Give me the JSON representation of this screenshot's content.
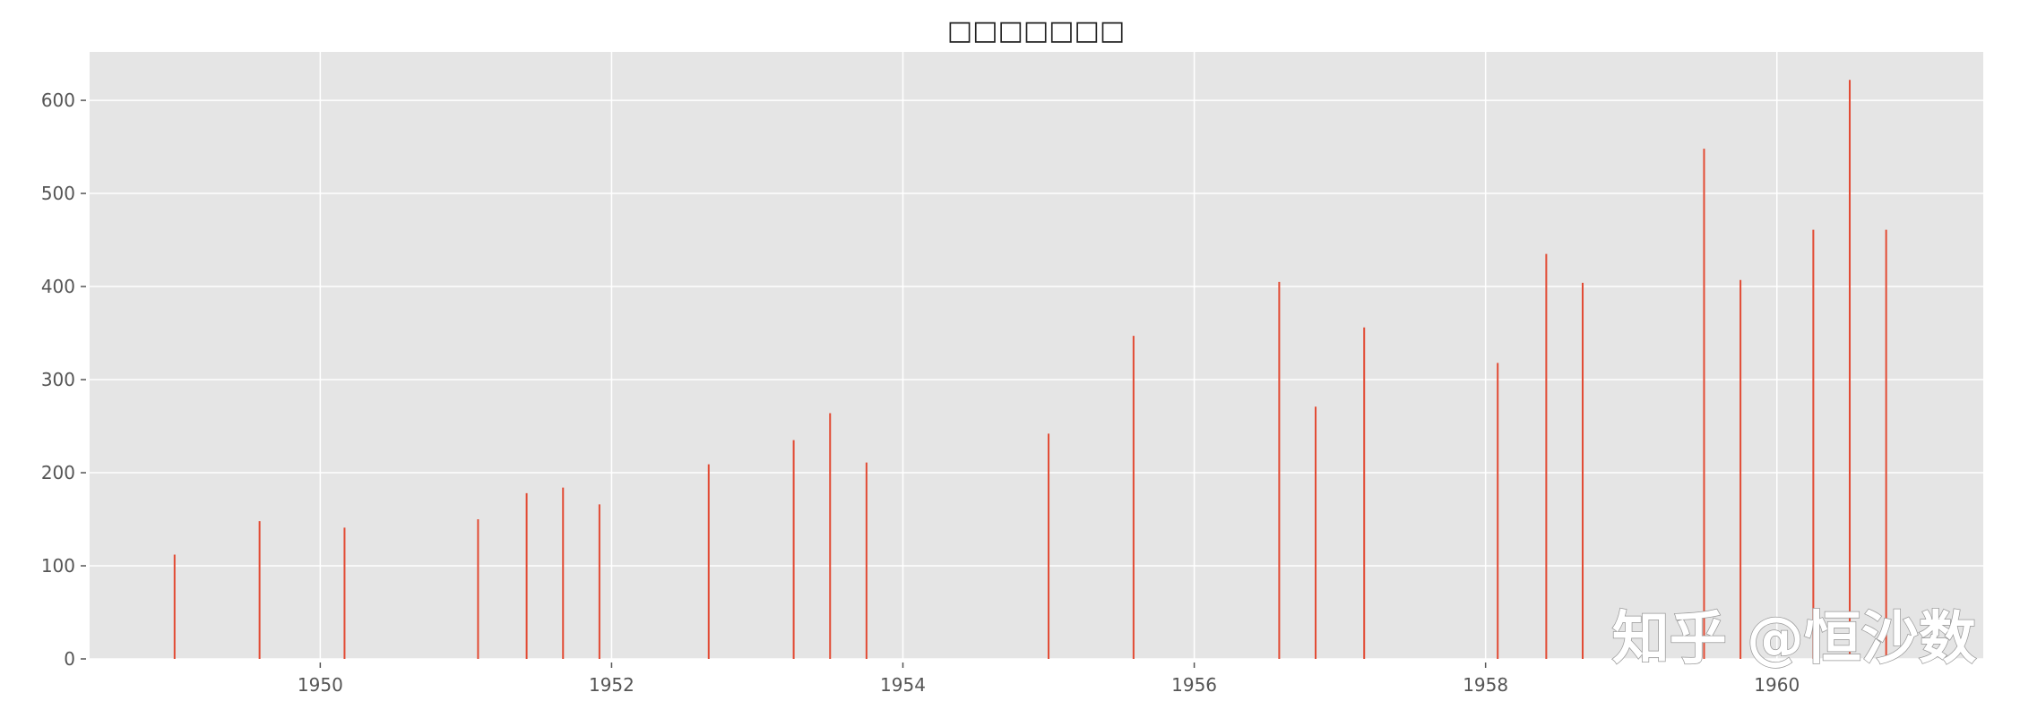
{
  "chart_data": {
    "type": "bar",
    "style": "vertical lines (stems) from 0",
    "title": "□□□□□□□",
    "xlabel": "",
    "ylabel": "",
    "xlim": [
      "1948-06",
      "1961-06"
    ],
    "ylim": [
      0,
      652
    ],
    "xticks": [
      "1950",
      "1952",
      "1954",
      "1956",
      "1958",
      "1960"
    ],
    "yticks": [
      "0",
      "100",
      "200",
      "300",
      "400",
      "500",
      "600"
    ],
    "grid": true,
    "colors": {
      "line": "#e24a33",
      "background": "#e5e5e5",
      "grid": "#ffffff"
    },
    "x": [
      "1949-01",
      "1949-08",
      "1950-03",
      "1951-02",
      "1951-06",
      "1951-09",
      "1951-12",
      "1952-09",
      "1953-04",
      "1953-07",
      "1953-10",
      "1955-01",
      "1955-08",
      "1956-08",
      "1956-11",
      "1957-03",
      "1958-02",
      "1958-06",
      "1958-09",
      "1959-07",
      "1959-10",
      "1960-04",
      "1960-07",
      "1960-10"
    ],
    "values": [
      112,
      148,
      141,
      150,
      178,
      184,
      166,
      209,
      235,
      264,
      211,
      242,
      347,
      405,
      271,
      356,
      318,
      435,
      404,
      548,
      407,
      461,
      622,
      461
    ]
  },
  "watermark": "知乎 @恒沙数"
}
